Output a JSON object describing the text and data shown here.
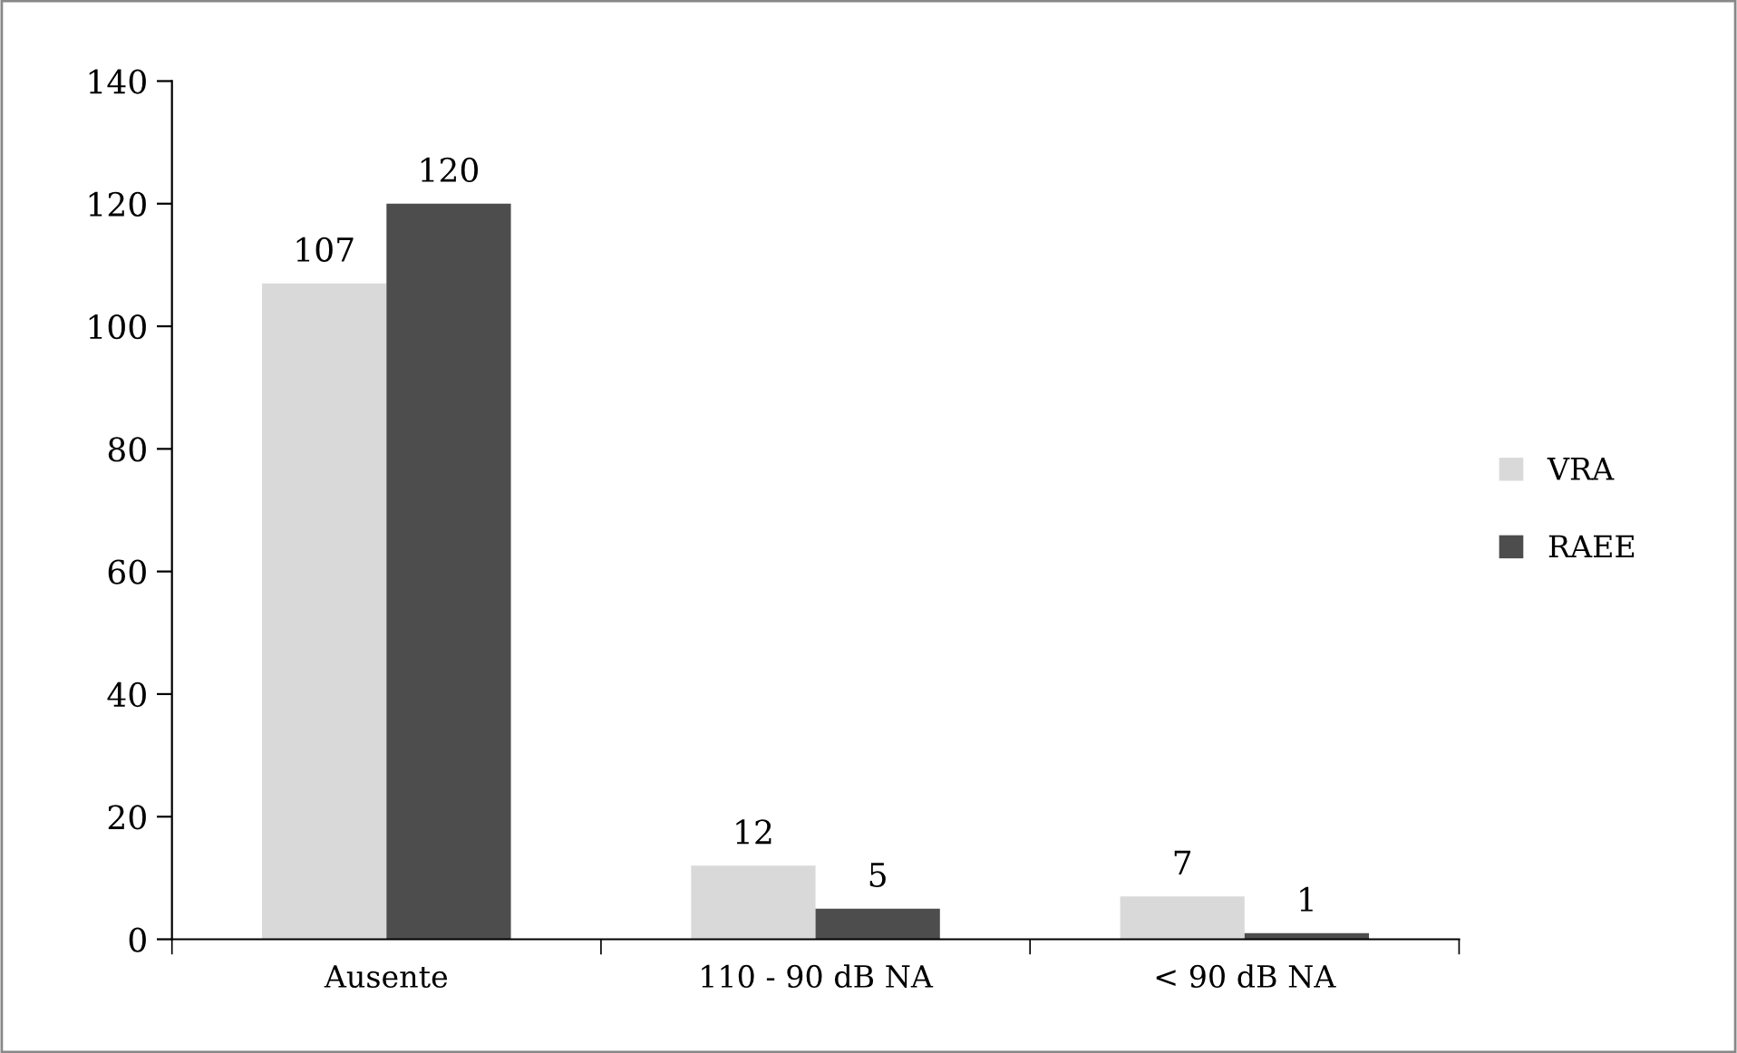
{
  "chart_data": {
    "type": "bar",
    "categories": [
      "Ausente",
      "110 - 90 dB NA",
      "< 90 dB NA"
    ],
    "series": [
      {
        "name": "VRA",
        "color": "#d9d9d9",
        "values": [
          107,
          12,
          7
        ]
      },
      {
        "name": "RAEE",
        "color": "#4d4d4d",
        "values": [
          120,
          5,
          1
        ]
      }
    ],
    "ylim": [
      0,
      140
    ],
    "yticks": [
      0,
      20,
      40,
      60,
      80,
      100,
      120,
      140
    ],
    "data_labels": true,
    "legend": "right",
    "grid": false
  }
}
